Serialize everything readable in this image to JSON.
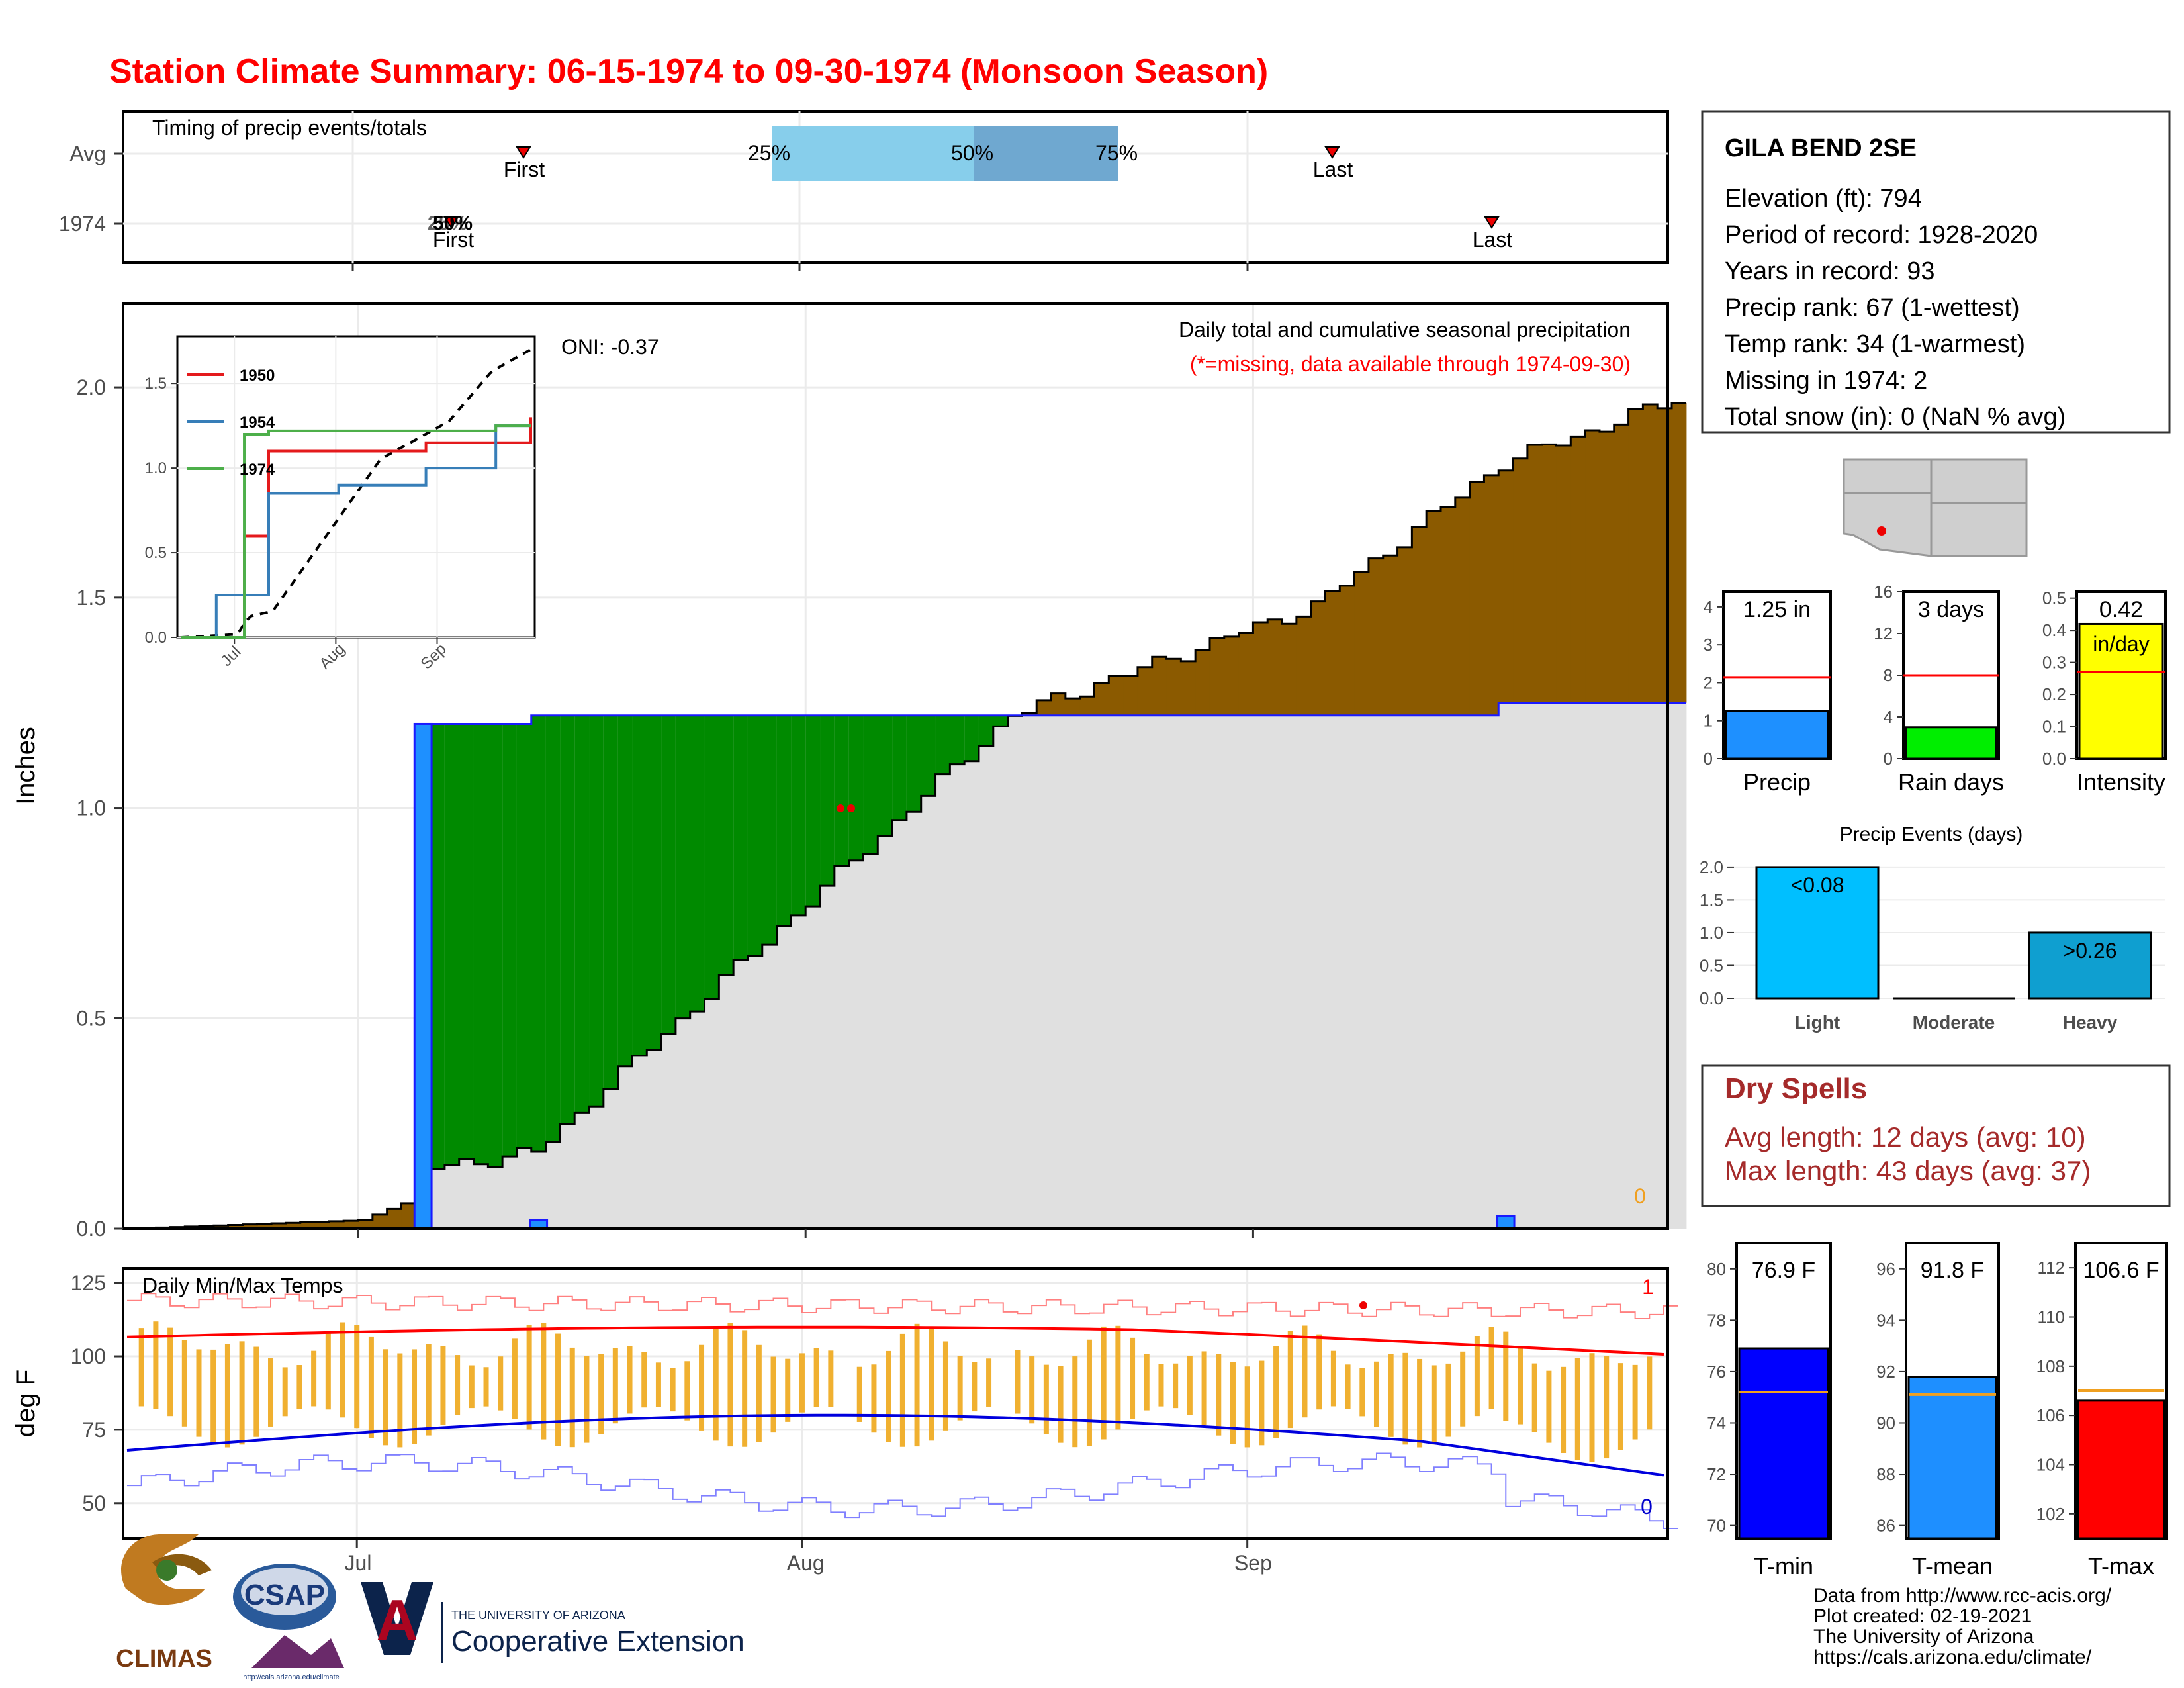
{
  "title": "Station Climate Summary: 06-15-1974 to 09-30-1974 (Monsoon Season)",
  "colors": {
    "title": "#ff0000",
    "accent_dark_red": "#a52a2a",
    "brown": "#8b5a00",
    "green": "#008a00",
    "grey": "#e0e0e0",
    "blue": "#1e90ff",
    "orange": "#f0a020"
  },
  "timing_panel": {
    "label": "Timing of precip events/totals",
    "rows": [
      "Avg",
      "1974"
    ],
    "avg_first_label": "First",
    "avg_last_label": "Last",
    "y1974_first_label": "First",
    "y1974_last_label": "Last",
    "pct_25": "25%",
    "pct_50": "50%",
    "pct_75": "75%",
    "y1974_overlap_label": "50%",
    "y1974_overlap_label_b": "25%"
  },
  "station": {
    "name": "GILA BEND 2SE",
    "elevation": "Elevation (ft): 794",
    "period": "Period of record: 1928-2020",
    "years": "Years in record: 93",
    "precip_rank": "Precip rank: 67 (1-wettest)",
    "temp_rank": "Temp rank: 34 (1-warmest)",
    "missing": "Missing in 1974: 2",
    "snow": "Total snow (in): 0 (NaN % avg)"
  },
  "main_panel": {
    "ylabel": "Inches",
    "yticks": [
      "0.0",
      "0.5",
      "1.0",
      "1.5",
      "2.0"
    ],
    "xticks": [
      "Jul",
      "Aug",
      "Sep"
    ],
    "caption": "Daily total and cumulative seasonal precipitation",
    "missing_note": "(*=missing, data available through 1974-09-30)",
    "oni": "ONI: -0.37",
    "zero_count": "0"
  },
  "inset": {
    "yticks": [
      "0.0",
      "0.5",
      "1.0",
      "1.5"
    ],
    "xticks": [
      "Jul",
      "Aug",
      "Sep"
    ],
    "legend": [
      "1950",
      "1954",
      "1974"
    ]
  },
  "temp_panel": {
    "ylabel": "deg F",
    "label": "Daily Min/Max Temps",
    "yticks": [
      "50",
      "75",
      "100",
      "125"
    ],
    "record_high_count": "1",
    "record_low_count": "0"
  },
  "mini_bars": {
    "precip": {
      "label": "Precip",
      "value_text": "1.25 in",
      "yticks": [
        "0",
        "1",
        "2",
        "3",
        "4"
      ]
    },
    "rain_days": {
      "label": "Rain days",
      "value_text": "3 days",
      "yticks": [
        "0",
        "4",
        "8",
        "12",
        "16"
      ]
    },
    "intensity": {
      "label": "Intensity",
      "value_text": "0.42",
      "unit": "in/day",
      "yticks": [
        "0.0",
        "0.1",
        "0.2",
        "0.3",
        "0.4",
        "0.5"
      ]
    }
  },
  "events_panel": {
    "title": "Precip Events (days)",
    "categories": [
      "Light",
      "Moderate",
      "Heavy"
    ],
    "bar_labels": [
      "<0.08",
      "",
      ">0.26"
    ],
    "yticks": [
      "0.0",
      "0.5",
      "1.0",
      "1.5",
      "2.0"
    ]
  },
  "dry_spells": {
    "title": "Dry Spells",
    "avg": "Avg length: 12 days (avg: 10)",
    "max": "Max length: 43 days (avg: 37)"
  },
  "temp_bars": {
    "tmin": {
      "label": "T-min",
      "value_text": "76.9 F",
      "yticks": [
        "70",
        "72",
        "74",
        "76",
        "78",
        "80"
      ]
    },
    "tmean": {
      "label": "T-mean",
      "value_text": "91.8 F",
      "yticks": [
        "86",
        "88",
        "90",
        "92",
        "94",
        "96"
      ]
    },
    "tmax": {
      "label": "T-max",
      "value_text": "106.6 F",
      "yticks": [
        "102",
        "104",
        "106",
        "108",
        "110",
        "112"
      ]
    }
  },
  "footer": {
    "line1": "Data from http://www.rcc-acis.org/",
    "line2": "Plot created: 02-19-2021",
    "line3": "The University of Arizona",
    "line4": "https://cals.arizona.edu/climate/"
  },
  "logos": {
    "climas": "CLIMAS",
    "csap": "CSAP",
    "csap_url": "http://cals.arizona.edu/climate",
    "ua_small": "THE UNIVERSITY OF ARIZONA",
    "ua_big": "Cooperative Extension"
  },
  "chart_data": {
    "type": "area",
    "x": [
      "1974-06-15",
      "1974-07-01",
      "1974-07-04",
      "1974-07-05",
      "1974-07-13",
      "1974-08-15",
      "1974-09-05",
      "1974-09-18",
      "1974-09-30"
    ],
    "series": [
      {
        "name": "1974",
        "values": [
          0.0,
          0.0,
          0.0,
          1.2,
          1.22,
          1.22,
          1.22,
          1.25,
          1.25
        ]
      },
      {
        "values": [
          0.0,
          0.02,
          0.06,
          0.14,
          0.18,
          1.22,
          1.48,
          1.82,
          1.97
        ]
      }
    ],
    "ylim": [
      0,
      2.2
    ],
    "inset_series": [
      {
        "name": "1950",
        "values": [
          0,
          0,
          0.6,
          1.1,
          1.1,
          1.15,
          1.15,
          1.3
        ]
      },
      {
        "name": "1954",
        "values": [
          0,
          0.25,
          0.25,
          0.85,
          0.9,
          1.0,
          1.25,
          1.25
        ]
      },
      {
        "name": "1974",
        "values": [
          0,
          0,
          1.2,
          1.22,
          1.22,
          1.22,
          1.25,
          1.25
        ]
      }
    ],
    "temps": {
      "tmin": 76.9,
      "tmean": 91.8,
      "tmax": 106.6,
      "tmin_avg": 75.2,
      "tmean_avg": 91.1,
      "tmax_avg": 107.0
    },
    "precip_total": 1.25,
    "precip_avg": 2.15,
    "rain_days": 3,
    "rain_days_avg": 8,
    "intensity": 0.42,
    "intensity_avg": 0.27,
    "events": [
      2,
      0,
      1
    ]
  }
}
